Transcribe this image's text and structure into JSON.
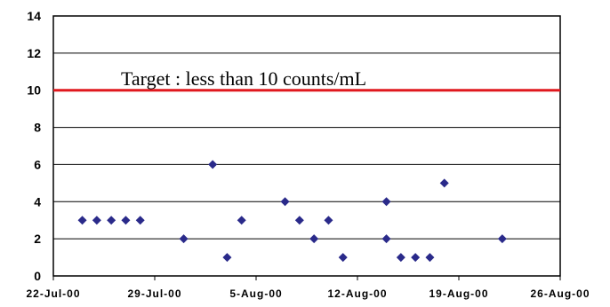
{
  "chart_data": {
    "type": "scatter",
    "title": "",
    "xlabel": "",
    "ylabel": "",
    "ylim": [
      0,
      14
    ],
    "y_ticks": [
      0,
      2,
      4,
      6,
      8,
      10,
      12,
      14
    ],
    "y_tick_labels": [
      "0",
      "2",
      "4",
      "6",
      "8",
      "10",
      "12",
      "14"
    ],
    "xlim": [
      "2000-07-22",
      "2000-08-26"
    ],
    "x_ticks": [
      "2000-07-22",
      "2000-07-29",
      "2000-08-05",
      "2000-08-12",
      "2000-08-19",
      "2000-08-26"
    ],
    "x_tick_labels": [
      "22-Jul-00",
      "29-Jul-00",
      "5-Aug-00",
      "12-Aug-00",
      "19-Aug-00",
      "26-Aug-00"
    ],
    "grid": "horizontal",
    "marker": "diamond",
    "series": [
      {
        "color": "#2a2a8a",
        "points": [
          {
            "x": "2000-07-24",
            "y": 3
          },
          {
            "x": "2000-07-25",
            "y": 3
          },
          {
            "x": "2000-07-26",
            "y": 3
          },
          {
            "x": "2000-07-27",
            "y": 3
          },
          {
            "x": "2000-07-28",
            "y": 3
          },
          {
            "x": "2000-07-31",
            "y": 2
          },
          {
            "x": "2000-08-02",
            "y": 6
          },
          {
            "x": "2000-08-03",
            "y": 1
          },
          {
            "x": "2000-08-04",
            "y": 3
          },
          {
            "x": "2000-08-07",
            "y": 4
          },
          {
            "x": "2000-08-08",
            "y": 3
          },
          {
            "x": "2000-08-09",
            "y": 2
          },
          {
            "x": "2000-08-10",
            "y": 3
          },
          {
            "x": "2000-08-11",
            "y": 1
          },
          {
            "x": "2000-08-14",
            "y": 4
          },
          {
            "x": "2000-08-14",
            "y": 2
          },
          {
            "x": "2000-08-15",
            "y": 1
          },
          {
            "x": "2000-08-16",
            "y": 1
          },
          {
            "x": "2000-08-17",
            "y": 1
          },
          {
            "x": "2000-08-18",
            "y": 5
          },
          {
            "x": "2000-08-22",
            "y": 2
          }
        ]
      }
    ],
    "reference_line": {
      "y": 10,
      "color": "#e0181e"
    },
    "annotation": "Target : less than 10 counts/mL"
  }
}
